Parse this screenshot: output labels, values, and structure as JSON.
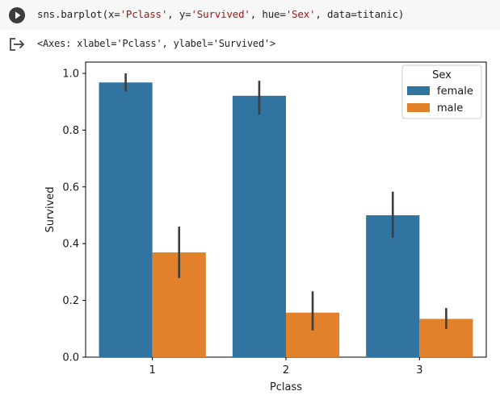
{
  "cell": {
    "code_parts": [
      "sns.barplot(x=",
      "'Pclass'",
      ", y=",
      "'Survived'",
      ", hue=",
      "'Sex'",
      ", data=titanic)"
    ],
    "output_text": "<Axes: xlabel='Pclass', ylabel='Survived'>"
  },
  "icons": {
    "run": "play-circle-icon",
    "output": "output-arrow-icon"
  },
  "colors": {
    "female": "#3274a1",
    "male": "#e1812c",
    "errorbar": "#3d3d3d"
  },
  "chart_data": {
    "type": "bar",
    "categories": [
      "1",
      "2",
      "3"
    ],
    "xlabel": "Pclass",
    "ylabel": "Survived",
    "ylim": [
      0,
      1.0
    ],
    "yticks": [
      "0.0",
      "0.2",
      "0.4",
      "0.6",
      "0.8",
      "1.0"
    ],
    "legend": {
      "title": "Sex",
      "placement": "top-right"
    },
    "series": [
      {
        "name": "female",
        "values": [
          0.968,
          0.921,
          0.5
        ],
        "ci": [
          [
            0.936,
            1.0
          ],
          [
            0.855,
            0.974
          ],
          [
            0.421,
            0.583
          ]
        ]
      },
      {
        "name": "male",
        "values": [
          0.369,
          0.157,
          0.135
        ],
        "ci": [
          [
            0.279,
            0.46
          ],
          [
            0.094,
            0.232
          ],
          [
            0.1,
            0.173
          ]
        ]
      }
    ]
  }
}
